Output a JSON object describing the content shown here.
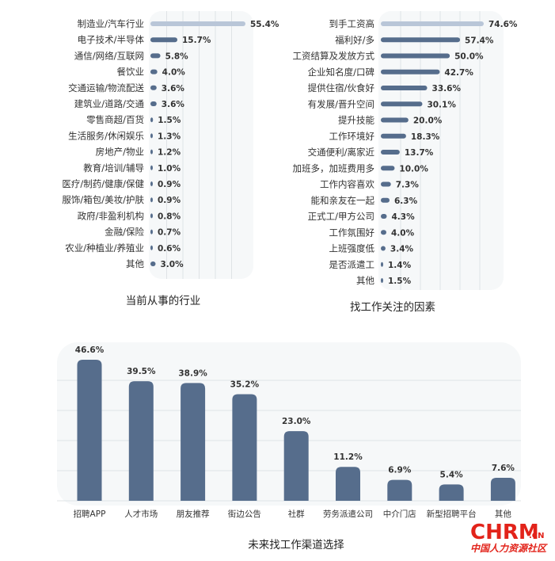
{
  "chart_data": [
    {
      "type": "bar",
      "orientation": "horizontal",
      "title": "当前从事的行业",
      "categories": [
        "制造业/汽车行业",
        "电子技术/半导体",
        "通信/网络/互联网",
        "餐饮业",
        "交通运输/物流配送",
        "建筑业/道路/交通",
        "零售商超/百货",
        "生活服务/休闲娱乐",
        "房地产/物业",
        "教育/培训/辅导",
        "医疗/制药/健康/保健",
        "服饰/箱包/美妆/护肤",
        "政府/非盈利机构",
        "金融/保险",
        "农业/种植业/养殖业",
        "其他"
      ],
      "values": [
        55.4,
        15.7,
        5.8,
        4.0,
        3.6,
        3.6,
        1.5,
        1.3,
        1.2,
        1.0,
        0.9,
        0.9,
        0.8,
        0.7,
        0.6,
        3.0
      ],
      "value_labels": [
        "55.4%",
        "15.7%",
        "5.8%",
        "4.0%",
        "3.6%",
        "3.6%",
        "1.5%",
        "1.3%",
        "1.2%",
        "1.0%",
        "0.9%",
        "0.9%",
        "0.8%",
        "0.7%",
        "0.6%",
        "3.0%"
      ],
      "highlight_index": 0,
      "colors": {
        "bar": "#566d8c",
        "highlight": "#b9c6d8",
        "panel": "#f6f8f9",
        "grid": "#dfe3e6"
      }
    },
    {
      "type": "bar",
      "orientation": "horizontal",
      "title": "找工作关注的因素",
      "categories": [
        "到手工资高",
        "福利好/多",
        "工资结算及发放方式",
        "企业知名度/口碑",
        "提供住宿/伙食好",
        "有发展/晋升空间",
        "提升技能",
        "工作环境好",
        "交通便利/离家近",
        "加班多，加班费用多",
        "工作内容喜欢",
        "能和亲友在一起",
        "正式工/甲方公司",
        "工作氛围好",
        "上班强度低",
        "是否派遣工",
        "其他"
      ],
      "values": [
        74.6,
        57.4,
        50.0,
        42.7,
        33.6,
        30.1,
        20.0,
        18.3,
        13.7,
        10.0,
        7.3,
        6.3,
        4.3,
        4.0,
        3.4,
        1.4,
        1.5
      ],
      "value_labels": [
        "74.6%",
        "57.4%",
        "50.0%",
        "42.7%",
        "33.6%",
        "30.1%",
        "20.0%",
        "18.3%",
        "13.7%",
        "10.0%",
        "7.3%",
        "6.3%",
        "4.3%",
        "4.0%",
        "3.4%",
        "1.4%",
        "1.5%"
      ],
      "highlight_index": 0,
      "colors": {
        "bar": "#566d8c",
        "highlight": "#b9c6d8",
        "panel": "#f6f8f9",
        "grid": "#dfe3e6"
      }
    },
    {
      "type": "bar",
      "orientation": "vertical",
      "title": "未来找工作渠道选择",
      "categories": [
        "招聘APP",
        "人才市场",
        "朋友推荐",
        "街边公告",
        "社群",
        "劳务派遣公司",
        "中介门店",
        "新型招聘平台",
        "其他"
      ],
      "values": [
        46.6,
        39.5,
        38.9,
        35.2,
        23.0,
        11.2,
        6.9,
        5.4,
        7.6
      ],
      "value_labels": [
        "46.6%",
        "39.5%",
        "38.9%",
        "35.2%",
        "23.0%",
        "11.2%",
        "6.9%",
        "5.4%",
        "7.6%"
      ],
      "colors": {
        "bar": "#566d8c",
        "panel": "#f6f8f9",
        "grid": "#dfe3e6"
      }
    }
  ],
  "logo": {
    "main": "CHRM",
    "suffix": ".CN",
    "subtitle": "中国人力资源社区"
  }
}
